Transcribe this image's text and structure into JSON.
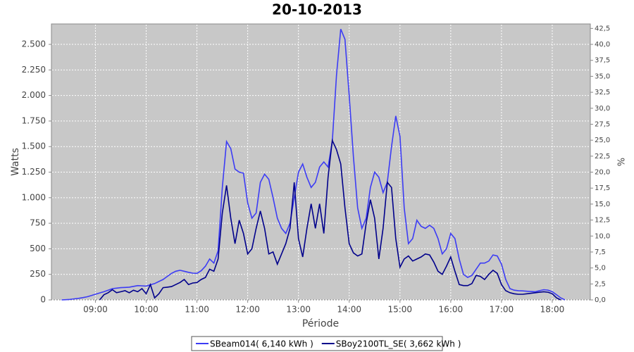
{
  "chart_data": {
    "type": "line",
    "title": "20-10-2013",
    "xlabel": "Période",
    "ylabel": "Watts",
    "y2label": "%",
    "x": [
      "08:20",
      "08:25",
      "08:30",
      "08:35",
      "08:40",
      "08:45",
      "08:50",
      "08:55",
      "09:00",
      "09:05",
      "09:10",
      "09:15",
      "09:20",
      "09:25",
      "09:30",
      "09:35",
      "09:40",
      "09:45",
      "09:50",
      "09:55",
      "10:00",
      "10:05",
      "10:10",
      "10:15",
      "10:20",
      "10:25",
      "10:30",
      "10:35",
      "10:40",
      "10:45",
      "10:50",
      "10:55",
      "11:00",
      "11:05",
      "11:10",
      "11:15",
      "11:20",
      "11:25",
      "11:30",
      "11:35",
      "11:40",
      "11:45",
      "11:50",
      "11:55",
      "12:00",
      "12:05",
      "12:10",
      "12:15",
      "12:20",
      "12:25",
      "12:30",
      "12:35",
      "12:40",
      "12:45",
      "12:50",
      "12:55",
      "13:00",
      "13:05",
      "13:10",
      "13:15",
      "13:20",
      "13:25",
      "13:30",
      "13:35",
      "13:40",
      "13:45",
      "13:50",
      "13:55",
      "14:00",
      "14:05",
      "14:10",
      "14:15",
      "14:20",
      "14:25",
      "14:30",
      "14:35",
      "14:40",
      "14:45",
      "14:50",
      "14:55",
      "15:00",
      "15:05",
      "15:10",
      "15:15",
      "15:20",
      "15:25",
      "15:30",
      "15:35",
      "15:40",
      "15:45",
      "15:50",
      "15:55",
      "16:00",
      "16:05",
      "16:10",
      "16:15",
      "16:20",
      "16:25",
      "16:30",
      "16:35",
      "16:40",
      "16:45",
      "16:50",
      "16:55",
      "17:00",
      "17:05",
      "17:10",
      "17:15",
      "17:20",
      "17:25",
      "17:30",
      "17:35",
      "17:40",
      "17:45",
      "17:50",
      "17:55",
      "18:00",
      "18:05",
      "18:10",
      "18:15"
    ],
    "series": [
      {
        "name": "SBeam014( 6,140 kWh )",
        "color": "#3c3cf5",
        "values": [
          0,
          2,
          5,
          10,
          15,
          22,
          30,
          42,
          55,
          68,
          80,
          95,
          110,
          115,
          120,
          122,
          125,
          132,
          140,
          138,
          135,
          148,
          160,
          180,
          200,
          230,
          260,
          280,
          290,
          280,
          270,
          262,
          260,
          285,
          330,
          400,
          360,
          480,
          1100,
          1550,
          1480,
          1280,
          1250,
          1240,
          950,
          800,
          850,
          1150,
          1230,
          1180,
          1000,
          800,
          700,
          650,
          750,
          1000,
          1250,
          1330,
          1200,
          1100,
          1150,
          1300,
          1350,
          1300,
          1550,
          2200,
          2650,
          2550,
          2000,
          1400,
          900,
          700,
          800,
          1100,
          1250,
          1200,
          1050,
          1150,
          1500,
          1800,
          1600,
          900,
          550,
          600,
          780,
          720,
          700,
          730,
          700,
          600,
          450,
          500,
          650,
          600,
          400,
          250,
          220,
          240,
          300,
          360,
          360,
          380,
          440,
          430,
          350,
          200,
          110,
          95,
          90,
          88,
          85,
          82,
          80,
          90,
          100,
          95,
          80,
          50,
          20,
          0
        ]
      },
      {
        "name": "SBoy2100TL_SE( 3,662 kWh )",
        "color": "#00008b",
        "values": [
          null,
          null,
          null,
          null,
          null,
          null,
          null,
          null,
          null,
          0,
          50,
          70,
          100,
          70,
          80,
          90,
          70,
          95,
          80,
          110,
          60,
          150,
          20,
          60,
          120,
          125,
          130,
          150,
          170,
          200,
          150,
          165,
          170,
          200,
          220,
          300,
          280,
          400,
          850,
          1120,
          800,
          550,
          780,
          650,
          450,
          500,
          700,
          870,
          700,
          450,
          470,
          350,
          450,
          550,
          700,
          1150,
          600,
          420,
          700,
          940,
          700,
          940,
          650,
          1200,
          1560,
          1470,
          1330,
          900,
          550,
          460,
          430,
          450,
          750,
          980,
          800,
          400,
          700,
          1150,
          1100,
          600,
          320,
          400,
          430,
          380,
          400,
          420,
          450,
          440,
          370,
          280,
          250,
          330,
          420,
          280,
          150,
          140,
          140,
          160,
          240,
          230,
          200,
          250,
          290,
          260,
          150,
          90,
          70,
          60,
          55,
          55,
          60,
          65,
          70,
          75,
          80,
          75,
          60,
          20,
          0,
          null
        ]
      }
    ],
    "xlim": [
      "08:08",
      "18:45"
    ],
    "xticks": [
      "09:00",
      "10:00",
      "11:00",
      "12:00",
      "13:00",
      "14:00",
      "15:00",
      "16:00",
      "17:00",
      "18:00"
    ],
    "ylim": [
      0,
      2700
    ],
    "yticks": [
      0,
      250,
      500,
      750,
      {
        "value": 1000,
        "label": "1.000"
      },
      {
        "value": 1250,
        "label": "1.250"
      },
      {
        "value": 1500,
        "label": "1.500"
      },
      {
        "value": 1750,
        "label": "1.750"
      },
      {
        "value": 2000,
        "label": "2.000"
      },
      {
        "value": 2250,
        "label": "2.250"
      },
      {
        "value": 2500,
        "label": "2.500"
      }
    ],
    "y2lim": [
      0,
      43.2
    ],
    "y2ticks": [
      {
        "value": 0,
        "label": "0,0"
      },
      {
        "value": 2.5,
        "label": "2,5"
      },
      {
        "value": 5,
        "label": "5,0"
      },
      {
        "value": 7.5,
        "label": "7,5"
      },
      {
        "value": 10,
        "label": "10,0"
      },
      {
        "value": 12.5,
        "label": "12,5"
      },
      {
        "value": 15,
        "label": "15,0"
      },
      {
        "value": 17.5,
        "label": "17,5"
      },
      {
        "value": 20,
        "label": "20,0"
      },
      {
        "value": 22.5,
        "label": "22,5"
      },
      {
        "value": 25,
        "label": "25,0"
      },
      {
        "value": 27.5,
        "label": "27,5"
      },
      {
        "value": 30,
        "label": "30,0"
      },
      {
        "value": 32.5,
        "label": "32,5"
      },
      {
        "value": 35,
        "label": "35,0"
      },
      {
        "value": 37.5,
        "label": "37,5"
      },
      {
        "value": 40,
        "label": "40,0"
      },
      {
        "value": 42.5,
        "label": "42,5"
      }
    ],
    "grid": true,
    "legend": "bottom"
  }
}
